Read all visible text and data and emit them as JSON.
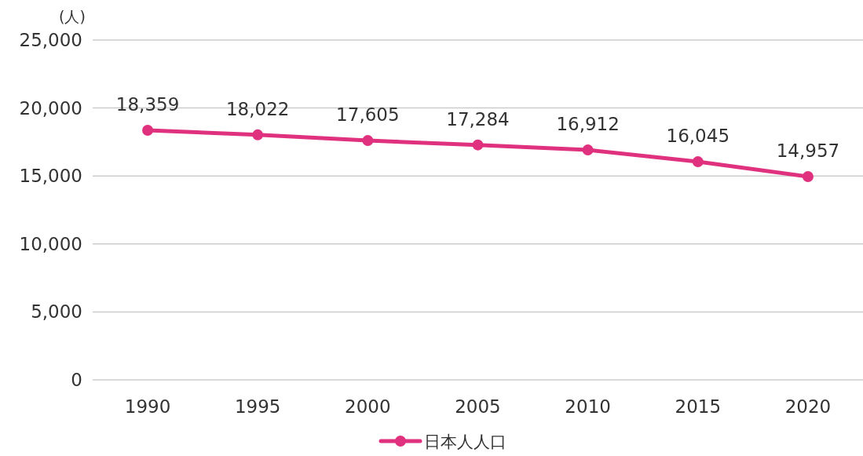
{
  "chart_data": {
    "type": "line",
    "ylabel": "(人)",
    "categories": [
      "1990",
      "1995",
      "2000",
      "2005",
      "2010",
      "2015",
      "2020"
    ],
    "series": [
      {
        "name": "日本人人口",
        "color": "#e0317f",
        "values": [
          18359,
          18022,
          17605,
          17284,
          16912,
          16045,
          14957
        ],
        "value_labels": [
          "18,359",
          "18,022",
          "17,605",
          "17,284",
          "16,912",
          "16,045",
          "14,957"
        ]
      }
    ],
    "ylim": [
      0,
      25000
    ],
    "yticks": [
      {
        "value": 0,
        "label": "0"
      },
      {
        "value": 5000,
        "label": "5,000"
      },
      {
        "value": 10000,
        "label": "10,000"
      },
      {
        "value": 15000,
        "label": "15,000"
      },
      {
        "value": 20000,
        "label": "20,000"
      },
      {
        "value": 25000,
        "label": "25,000"
      }
    ],
    "grid": "y",
    "legend": "bottom",
    "marker": "circle",
    "line_style": "solid"
  }
}
